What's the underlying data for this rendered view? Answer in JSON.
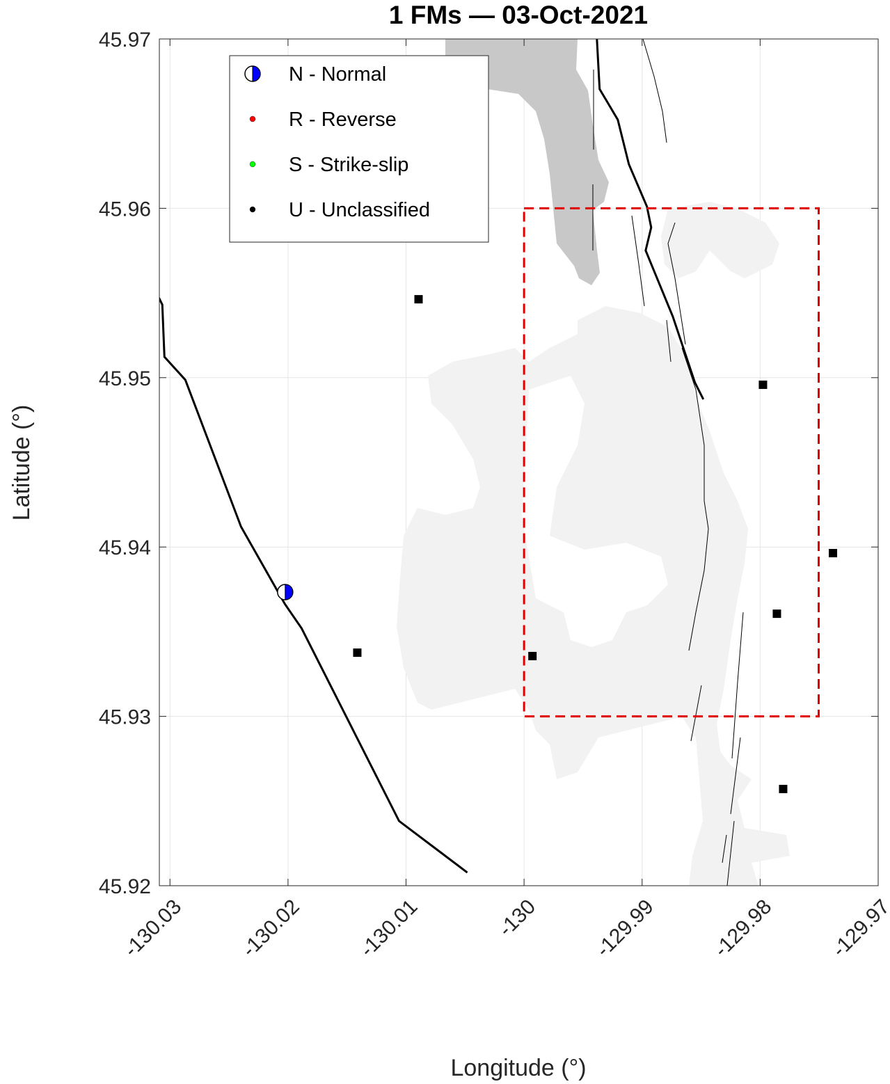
{
  "chart_data": {
    "type": "scatter",
    "title": "1 FMs  —  03-Oct-2021",
    "xlabel": "Longitude (°)",
    "ylabel": "Latitude (°)",
    "xlim": [
      -130.0309,
      -129.97
    ],
    "ylim": [
      45.92,
      45.97
    ],
    "xticks": [
      -130.03,
      -130.02,
      -130.01,
      -130,
      -129.99,
      -129.98,
      -129.97
    ],
    "yticks": [
      45.92,
      45.93,
      45.94,
      45.95,
      45.96,
      45.97
    ],
    "grid": true,
    "legend_position": "upper left",
    "legend": [
      {
        "label": "N - Normal",
        "color": "#0000ff"
      },
      {
        "label": "R - Reverse",
        "color": "#ff0000"
      },
      {
        "label": "S - Strike-slip",
        "color": "#00ff00"
      },
      {
        "label": "U - Unclassified",
        "color": "#000000"
      }
    ],
    "mechanisms": {
      "x": [
        -130.02024
      ],
      "y": [
        45.93734
      ],
      "color": "#0000ff"
    },
    "stations": {
      "x": [
        -130.00894,
        -129.97976,
        -129.97383,
        -129.97858,
        -130.01413,
        -129.99929,
        -129.97805
      ],
      "y": [
        45.95463,
        45.94958,
        45.93964,
        45.93606,
        45.93376,
        45.93356,
        45.92571
      ],
      "color": "#000000"
    },
    "faults": [
      {
        "x": [
          -130.03094,
          -130.03065,
          -130.03047,
          -130.0287,
          -130.02398,
          -130.02027,
          -130.01885,
          -130.01059,
          -130.00481
        ],
        "y": [
          45.95472,
          45.95431,
          45.95123,
          45.94987,
          45.9412,
          45.93664,
          45.9352,
          45.92382,
          45.92078
        ]
      },
      {
        "x": [
          -129.99383,
          -129.9936,
          -129.993,
          -129.99206,
          -129.99112,
          -129.98959,
          -129.98923,
          -129.9897,
          -129.9874,
          -129.98552,
          -129.98481
        ],
        "y": [
          45.97,
          45.96704,
          45.96634,
          45.96523,
          45.9626,
          45.9601,
          45.95887,
          45.95751,
          45.95361,
          45.9497,
          45.94872
        ]
      }
    ],
    "box": {
      "x": [
        -130,
        -129.97504
      ],
      "y": [
        45.93,
        45.96
      ],
      "color": "#e00000"
    }
  }
}
